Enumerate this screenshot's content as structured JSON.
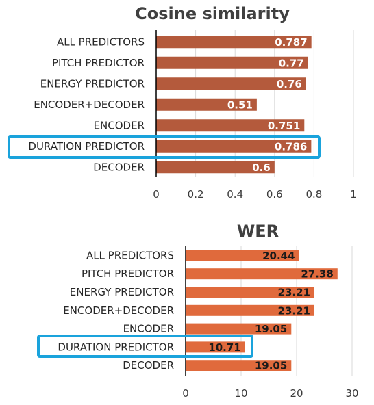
{
  "chart_data": [
    {
      "type": "bar",
      "orientation": "horizontal",
      "title": "Cosine similarity",
      "categories": [
        "ALL PREDICTORS",
        "PITCH PREDICTOR",
        "ENERGY PREDICTOR",
        "ENCODER+DECODER",
        "ENCODER",
        "DURATION PREDICTOR",
        "DECODER"
      ],
      "values": [
        0.787,
        0.77,
        0.76,
        0.51,
        0.751,
        0.786,
        0.6
      ],
      "data_labels": [
        "0.787",
        "0.77",
        "0.76",
        "0.51",
        "0.751",
        "0.786",
        "0.6"
      ],
      "xlim": [
        0,
        1
      ],
      "xticks": [
        0,
        0.2,
        0.4,
        0.6,
        0.8,
        1
      ],
      "xtick_labels": [
        "0",
        "0.2",
        "0.4",
        "0.6",
        "0.8",
        "1"
      ],
      "highlighted_category": "DURATION PREDICTOR",
      "bar_color": "#b45a3c",
      "label_color": "#ffffff",
      "grid": true
    },
    {
      "type": "bar",
      "orientation": "horizontal",
      "title": "WER",
      "categories": [
        "ALL PREDICTORS",
        "PITCH PREDICTOR",
        "ENERGY PREDICTOR",
        "ENCODER+DECODER",
        "ENCODER",
        "DURATION PREDICTOR",
        "DECODER"
      ],
      "values": [
        20.44,
        27.38,
        23.21,
        23.21,
        19.05,
        10.71,
        19.05
      ],
      "data_labels": [
        "20.44",
        "27.38",
        "23.21",
        "23.21",
        "19.05",
        "10.71",
        "19.05"
      ],
      "xlim": [
        0,
        30
      ],
      "xticks": [
        0,
        10,
        20,
        30
      ],
      "xtick_labels": [
        "0",
        "10",
        "20",
        "30"
      ],
      "highlighted_category": "DURATION PREDICTOR",
      "bar_color": "#e06a3c",
      "label_color": "#1a1a1a",
      "grid": true
    }
  ],
  "highlight_color": "#1aa3dc"
}
